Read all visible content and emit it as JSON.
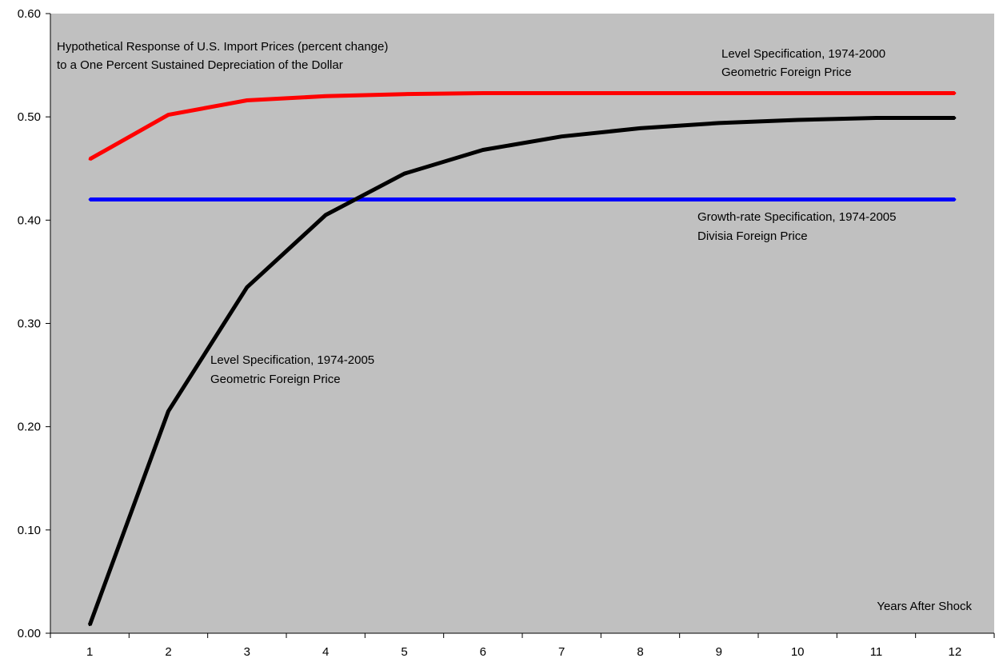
{
  "chart_data": {
    "type": "line",
    "title": "",
    "xlabel": "Years After Shock",
    "ylabel": "",
    "x": [
      1,
      2,
      3,
      4,
      5,
      6,
      7,
      8,
      9,
      10,
      11,
      12
    ],
    "x_tick_labels": [
      "1",
      "2",
      "3",
      "4",
      "5",
      "6",
      "7",
      "8",
      "9",
      "10",
      "11",
      "12"
    ],
    "y_tick_labels": [
      "0.00",
      "0.10",
      "0.20",
      "0.30",
      "0.40",
      "0.50",
      "0.60"
    ],
    "ylim": [
      0,
      0.6
    ],
    "grid": false,
    "background_color": "#c0c0c0",
    "series": [
      {
        "color": "#ff0000",
        "values": [
          0.459,
          0.502,
          0.516,
          0.52,
          0.522,
          0.523,
          0.523,
          0.523,
          0.523,
          0.523,
          0.523,
          0.523
        ]
      },
      {
        "color": "#0000ff",
        "values": [
          0.42,
          0.42,
          0.42,
          0.42,
          0.42,
          0.42,
          0.42,
          0.42,
          0.42,
          0.42,
          0.42,
          0.42
        ]
      },
      {
        "color": "#000000",
        "values": [
          0.008,
          0.215,
          0.335,
          0.405,
          0.445,
          0.468,
          0.481,
          0.489,
          0.494,
          0.497,
          0.499,
          0.499
        ]
      }
    ],
    "annotations": {
      "description": [
        "Hypothetical Response of U.S. Import Prices (percent change)",
        "to a One Percent Sustained Depreciation of the Dollar"
      ],
      "red_series_label": [
        "Level Specification, 1974-2000",
        "Geometric Foreign Price"
      ],
      "blue_series_label": [
        "Growth-rate Specification, 1974-2005",
        "Divisia Foreign Price"
      ],
      "black_series_label": [
        "Level Specification, 1974-2005",
        "Geometric Foreign Price"
      ]
    }
  }
}
